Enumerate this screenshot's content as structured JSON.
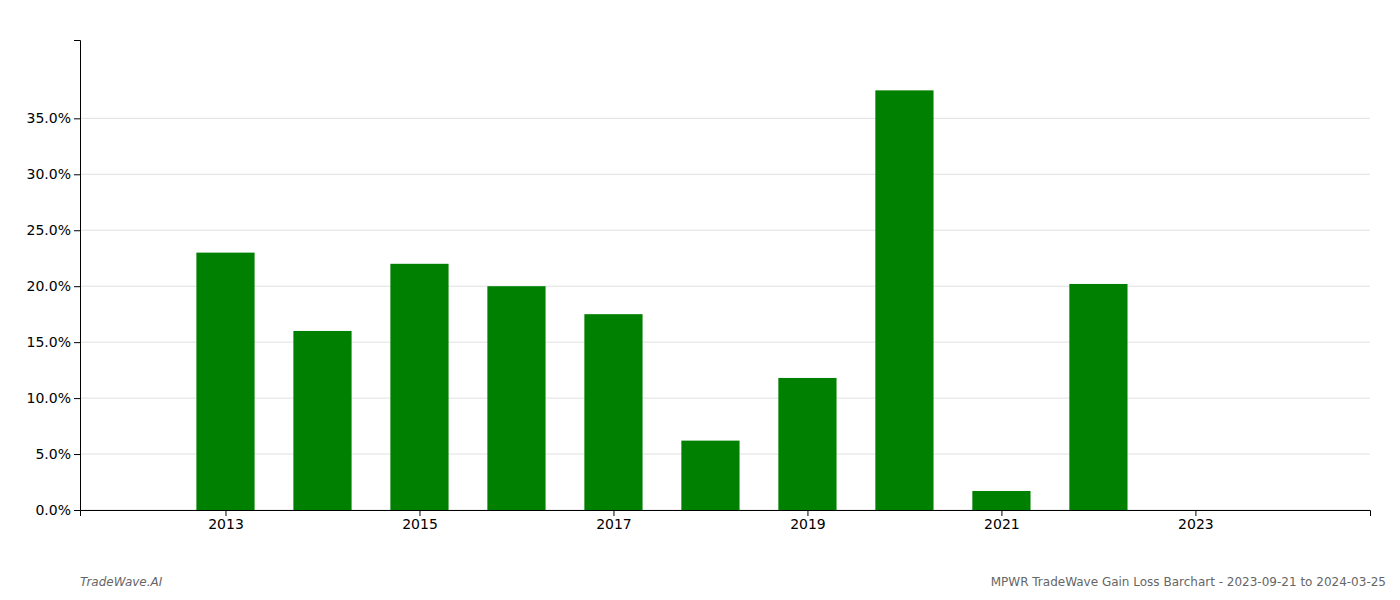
{
  "chart_data": {
    "type": "bar",
    "x": [
      2013,
      2014,
      2015,
      2016,
      2017,
      2018,
      2019,
      2020,
      2021,
      2022,
      2023
    ],
    "values": [
      0.23,
      0.16,
      0.22,
      0.2,
      0.175,
      0.062,
      0.118,
      0.375,
      0.017,
      0.202,
      0.0
    ],
    "color": "#008000",
    "xlim": [
      2011.5,
      2024.8
    ],
    "xticks": [
      2013,
      2015,
      2017,
      2019,
      2021,
      2023
    ],
    "ylim": [
      0,
      0.42
    ],
    "yticks": [
      {
        "value": 0.0,
        "label": "0.0%"
      },
      {
        "value": 0.05,
        "label": "5.0%"
      },
      {
        "value": 0.1,
        "label": "10.0%"
      },
      {
        "value": 0.15,
        "label": "15.0%"
      },
      {
        "value": 0.2,
        "label": "20.0%"
      },
      {
        "value": 0.25,
        "label": "25.0%"
      },
      {
        "value": 0.3,
        "label": "30.0%"
      },
      {
        "value": 0.35,
        "label": "35.0%"
      }
    ],
    "grid": true,
    "annotations": [
      "TradeWave.AI",
      "MPWR TradeWave Gain Loss Barchart - 2023-09-21 to 2024-03-25"
    ]
  }
}
